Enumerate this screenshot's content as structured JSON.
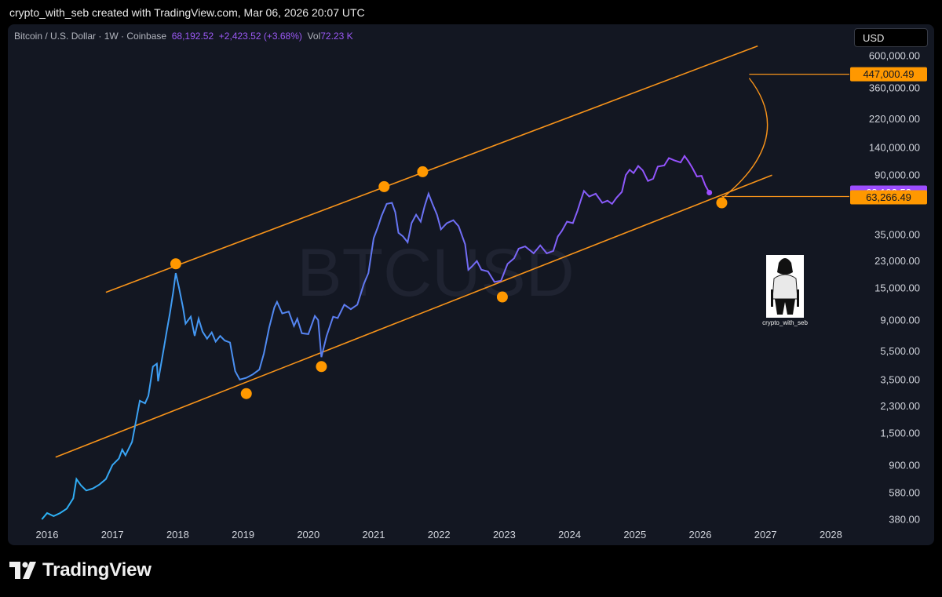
{
  "credit": "crypto_with_seb created with TradingView.com, Mar 06, 2026 20:07 UTC",
  "legend": {
    "symbol": "Bitcoin / U.S. Dollar · 1W · Coinbase",
    "price": "68,192.52",
    "change": "+2,423.52 (+3.68%)",
    "vol_label": "Vol",
    "vol_value": "72.23 K"
  },
  "currency_button": "USD",
  "watermark": "BTCUSD",
  "avatar_caption": "crypto_with_seb",
  "brand": "TradingView",
  "colors": {
    "channel": "#f7931a",
    "price_line_start": "#29b6f6",
    "price_line_end": "#9c4dff",
    "background": "#131722"
  },
  "chart_data": {
    "type": "line",
    "y_scale": "log",
    "ylim": [
      370,
      700000
    ],
    "xlim": [
      2015.5,
      2028.3
    ],
    "y_ticks": [
      "600,000.00",
      "360,000.00",
      "220,000.00",
      "140,000.00",
      "90,000.00",
      "35,000.00",
      "23,000.00",
      "15,000.00",
      "9,000.00",
      "5,500.00",
      "3,500.00",
      "2,300.00",
      "1,500.00",
      "900.00",
      "580.00",
      "380.00"
    ],
    "x_ticks": [
      "2016",
      "2017",
      "2018",
      "2019",
      "2020",
      "2021",
      "2022",
      "2023",
      "2024",
      "2025",
      "2026",
      "2027",
      "2028"
    ],
    "series": [
      {
        "values": [
          [
            2015.92,
            380
          ],
          [
            2016.0,
            420
          ],
          [
            2016.1,
            400
          ],
          [
            2016.2,
            420
          ],
          [
            2016.3,
            450
          ],
          [
            2016.4,
            530
          ],
          [
            2016.45,
            720
          ],
          [
            2016.52,
            650
          ],
          [
            2016.6,
            600
          ],
          [
            2016.7,
            620
          ],
          [
            2016.8,
            660
          ],
          [
            2016.9,
            720
          ],
          [
            2017.0,
            900
          ],
          [
            2017.1,
            1000
          ],
          [
            2017.15,
            1150
          ],
          [
            2017.2,
            1050
          ],
          [
            2017.3,
            1300
          ],
          [
            2017.35,
            1700
          ],
          [
            2017.42,
            2500
          ],
          [
            2017.5,
            2400
          ],
          [
            2017.55,
            2700
          ],
          [
            2017.62,
            4300
          ],
          [
            2017.68,
            4500
          ],
          [
            2017.7,
            3400
          ],
          [
            2017.78,
            5500
          ],
          [
            2017.83,
            7500
          ],
          [
            2017.88,
            10000
          ],
          [
            2017.93,
            14000
          ],
          [
            2017.97,
            19000
          ],
          [
            2018.02,
            15000
          ],
          [
            2018.08,
            11000
          ],
          [
            2018.12,
            8500
          ],
          [
            2018.2,
            9500
          ],
          [
            2018.26,
            7000
          ],
          [
            2018.32,
            9200
          ],
          [
            2018.38,
            7500
          ],
          [
            2018.45,
            6700
          ],
          [
            2018.52,
            7400
          ],
          [
            2018.58,
            6400
          ],
          [
            2018.65,
            7000
          ],
          [
            2018.72,
            6500
          ],
          [
            2018.8,
            6300
          ],
          [
            2018.88,
            4000
          ],
          [
            2018.95,
            3500
          ],
          [
            2019.05,
            3600
          ],
          [
            2019.15,
            3800
          ],
          [
            2019.25,
            4100
          ],
          [
            2019.32,
            5300
          ],
          [
            2019.4,
            8000
          ],
          [
            2019.48,
            11000
          ],
          [
            2019.52,
            12000
          ],
          [
            2019.6,
            10000
          ],
          [
            2019.7,
            10300
          ],
          [
            2019.78,
            8200
          ],
          [
            2019.83,
            9200
          ],
          [
            2019.9,
            7300
          ],
          [
            2020.0,
            7200
          ],
          [
            2020.1,
            9600
          ],
          [
            2020.15,
            9000
          ],
          [
            2020.2,
            5000
          ],
          [
            2020.28,
            7000
          ],
          [
            2020.38,
            9500
          ],
          [
            2020.45,
            9300
          ],
          [
            2020.55,
            11500
          ],
          [
            2020.65,
            10700
          ],
          [
            2020.75,
            11500
          ],
          [
            2020.85,
            16000
          ],
          [
            2020.92,
            19000
          ],
          [
            2021.0,
            33000
          ],
          [
            2021.07,
            40000
          ],
          [
            2021.12,
            47000
          ],
          [
            2021.2,
            57000
          ],
          [
            2021.28,
            58000
          ],
          [
            2021.33,
            50000
          ],
          [
            2021.38,
            36000
          ],
          [
            2021.45,
            34000
          ],
          [
            2021.52,
            31000
          ],
          [
            2021.58,
            42000
          ],
          [
            2021.65,
            48000
          ],
          [
            2021.72,
            43000
          ],
          [
            2021.78,
            55000
          ],
          [
            2021.84,
            67000
          ],
          [
            2021.9,
            57000
          ],
          [
            2021.97,
            48000
          ],
          [
            2022.03,
            38000
          ],
          [
            2022.12,
            42000
          ],
          [
            2022.22,
            44000
          ],
          [
            2022.3,
            40000
          ],
          [
            2022.4,
            30000
          ],
          [
            2022.45,
            20000
          ],
          [
            2022.5,
            21000
          ],
          [
            2022.58,
            23000
          ],
          [
            2022.65,
            20000
          ],
          [
            2022.75,
            19500
          ],
          [
            2022.85,
            16500
          ],
          [
            2022.95,
            16800
          ],
          [
            2023.05,
            22000
          ],
          [
            2023.15,
            24000
          ],
          [
            2023.22,
            28000
          ],
          [
            2023.32,
            29000
          ],
          [
            2023.45,
            26000
          ],
          [
            2023.55,
            29500
          ],
          [
            2023.65,
            26000
          ],
          [
            2023.75,
            27000
          ],
          [
            2023.82,
            34000
          ],
          [
            2023.88,
            37000
          ],
          [
            2023.96,
            43000
          ],
          [
            2024.05,
            42000
          ],
          [
            2024.12,
            51000
          ],
          [
            2024.18,
            62000
          ],
          [
            2024.22,
            70000
          ],
          [
            2024.3,
            64000
          ],
          [
            2024.4,
            67000
          ],
          [
            2024.5,
            58000
          ],
          [
            2024.58,
            60000
          ],
          [
            2024.65,
            57000
          ],
          [
            2024.72,
            63000
          ],
          [
            2024.8,
            69000
          ],
          [
            2024.86,
            90000
          ],
          [
            2024.92,
            98000
          ],
          [
            2024.98,
            93000
          ],
          [
            2025.05,
            104000
          ],
          [
            2025.12,
            97000
          ],
          [
            2025.2,
            82000
          ],
          [
            2025.28,
            85000
          ],
          [
            2025.35,
            103000
          ],
          [
            2025.45,
            105000
          ],
          [
            2025.52,
            118000
          ],
          [
            2025.6,
            114000
          ],
          [
            2025.7,
            110000
          ],
          [
            2025.76,
            122000
          ],
          [
            2025.82,
            112000
          ],
          [
            2025.88,
            101000
          ],
          [
            2025.95,
            88000
          ],
          [
            2026.02,
            89000
          ],
          [
            2026.08,
            76000
          ],
          [
            2026.14,
            68192
          ]
        ]
      }
    ],
    "channel": {
      "upper": [
        [
          2016.9,
          14000
        ],
        [
          2026.88,
          700000
        ]
      ],
      "lower": [
        [
          2016.13,
          1020
        ],
        [
          2027.1,
          90000
        ]
      ]
    },
    "touch_points": [
      [
        2017.97,
        22000
      ],
      [
        2019.05,
        2800
      ],
      [
        2020.2,
        4300
      ],
      [
        2021.16,
        75000
      ],
      [
        2021.75,
        95000
      ],
      [
        2022.97,
        13000
      ],
      [
        2026.33,
        58000
      ]
    ],
    "projection": {
      "from": [
        2026.33,
        62000
      ],
      "to": [
        2026.75,
        420000
      ],
      "target_line_y": 447000.49,
      "support_line_y": 63266.49
    },
    "price_labels": [
      {
        "text": "447,000.49",
        "value": 447000.49,
        "kind": "orange"
      },
      {
        "text": "68,192.52",
        "value": 68192.52,
        "kind": "purple"
      },
      {
        "text": "63,266.49",
        "value": 63266.49,
        "kind": "orange"
      }
    ]
  }
}
